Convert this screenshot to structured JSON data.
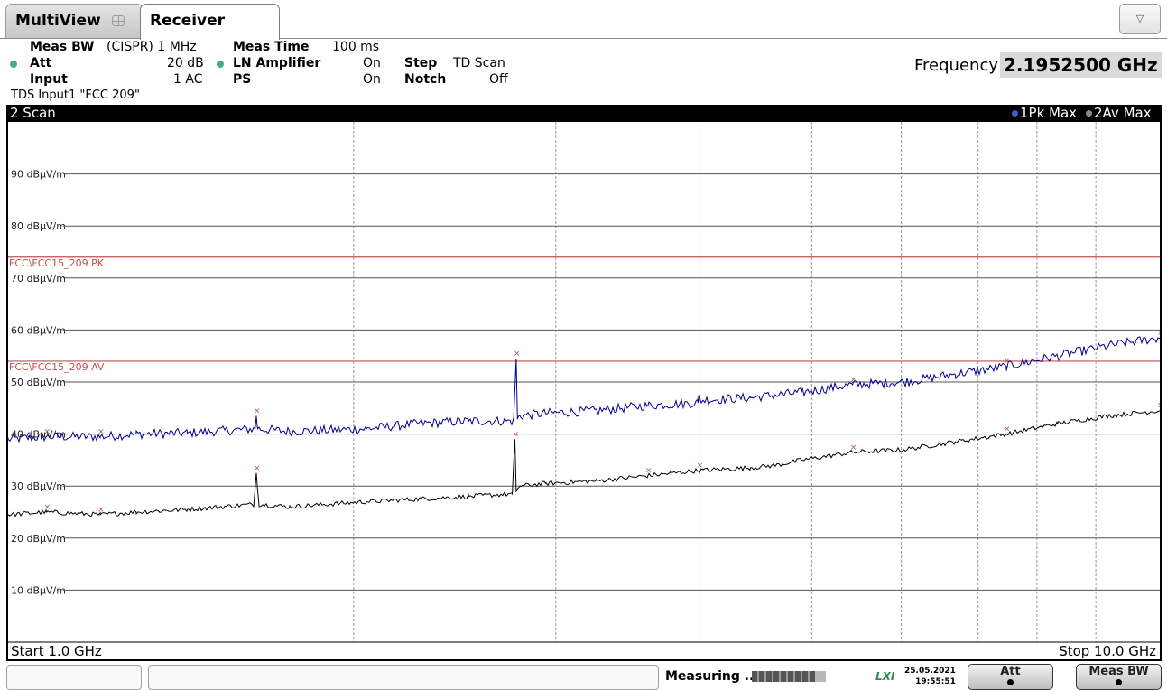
{
  "tabs": [
    {
      "label": "MultiView"
    },
    {
      "label": "Receiver"
    }
  ],
  "params": {
    "meas_bw_label": "Meas BW",
    "meas_bw_value": "(CISPR) 1 MHz",
    "att_label": "Att",
    "att_value": "20 dB",
    "input_label": "Input",
    "input_value": "1 AC",
    "meas_time_label": "Meas Time",
    "meas_time_value": "100 ms",
    "ln_amp_label": "LN Amplifier",
    "ln_amp_value": "On",
    "ps_label": "PS",
    "ps_value": "On",
    "step_label": "Step",
    "step_value": "TD Scan",
    "notch_label": "Notch",
    "notch_value": "Off",
    "tds_line": "TDS Input1 \"FCC 209\"",
    "frequency_label": "Frequency",
    "frequency_value": "2.1952500 GHz"
  },
  "window": {
    "title": "2 Scan",
    "trace1_legend": "1Pk Max",
    "trace2_legend": "2Av Max",
    "start_label": "Start 1.0 GHz",
    "stop_label": "Stop 10.0 GHz"
  },
  "colors": {
    "trace1": "#00008b",
    "trace2": "#000000",
    "limit_line": "#c0504d",
    "peak_marker": "#c0504d",
    "trace1_dot": "#3a5fcd",
    "trace2_dot": "#8a8a8a"
  },
  "chart_data": {
    "type": "line",
    "title": "2 Scan",
    "xlim": [
      1.0,
      10.0
    ],
    "ylim": [
      0,
      100
    ],
    "yticks": [
      10,
      20,
      30,
      40,
      50,
      60,
      70,
      80,
      90
    ],
    "ytick_labels": [
      "10 dBµV/m",
      "20 dBµV/m",
      "30 dBµV/m",
      "40 dBµV/m",
      "50 dBµV/m",
      "60 dBµV/m",
      "70 dBµV/m",
      "80 dBµV/m",
      "90 dBµV/m"
    ],
    "vgrid": [
      3.7,
      5.28,
      6.4,
      7.28,
      7.98,
      8.58,
      9.04,
      9.5
    ],
    "limit_lines": [
      {
        "name": "FCC\\FCC15_209 PK",
        "value": 74
      },
      {
        "name": "FCC\\FCC15_209 AV",
        "value": 54
      }
    ],
    "series": [
      {
        "name": "1Pk Max",
        "x": [
          1.0,
          1.3,
          1.72,
          2.0,
          2.4,
          2.93,
          2.94,
          2.95,
          3.2,
          3.8,
          4.2,
          4.6,
          4.95,
          4.97,
          4.98,
          5.0,
          5.2,
          5.6,
          6.0,
          6.39,
          6.4,
          6.41,
          6.8,
          7.2,
          7.6,
          8.0,
          8.4,
          8.8,
          9.2,
          9.6,
          10.0
        ],
        "y": [
          39.0,
          39.5,
          39.5,
          40.0,
          40.2,
          41.0,
          43.5,
          41.0,
          40.5,
          41.0,
          42.0,
          42.5,
          42.5,
          54.5,
          43.0,
          43.5,
          44.0,
          44.5,
          45.5,
          46.0,
          47.5,
          46.5,
          47.0,
          48.0,
          49.5,
          50.0,
          51.5,
          53.0,
          55.0,
          57.0,
          58.5
        ]
      },
      {
        "name": "2Av Max",
        "x": [
          1.0,
          1.3,
          1.72,
          2.0,
          2.4,
          2.92,
          2.94,
          2.96,
          3.2,
          3.8,
          4.2,
          4.6,
          4.94,
          4.96,
          4.97,
          4.98,
          5.0,
          5.2,
          5.6,
          6.0,
          6.4,
          6.8,
          7.0,
          7.2,
          7.6,
          8.0,
          8.4,
          8.8,
          9.2,
          9.6,
          10.0
        ],
        "y": [
          24.5,
          25.0,
          24.5,
          25.0,
          25.5,
          26.5,
          32.5,
          26.5,
          26.0,
          27.0,
          27.5,
          28.0,
          28.5,
          39.0,
          29.0,
          29.5,
          30.0,
          30.5,
          31.0,
          32.0,
          33.0,
          33.5,
          34.0,
          35.0,
          36.5,
          37.0,
          38.5,
          40.0,
          42.0,
          43.5,
          44.5
        ]
      }
    ]
  },
  "status": {
    "measuring": "Measuring ...",
    "progress": 0.85,
    "lxi": "LXI",
    "date": "25.05.2021",
    "time": "19:55:51",
    "softkeys": [
      "Att",
      "Meas BW"
    ]
  }
}
